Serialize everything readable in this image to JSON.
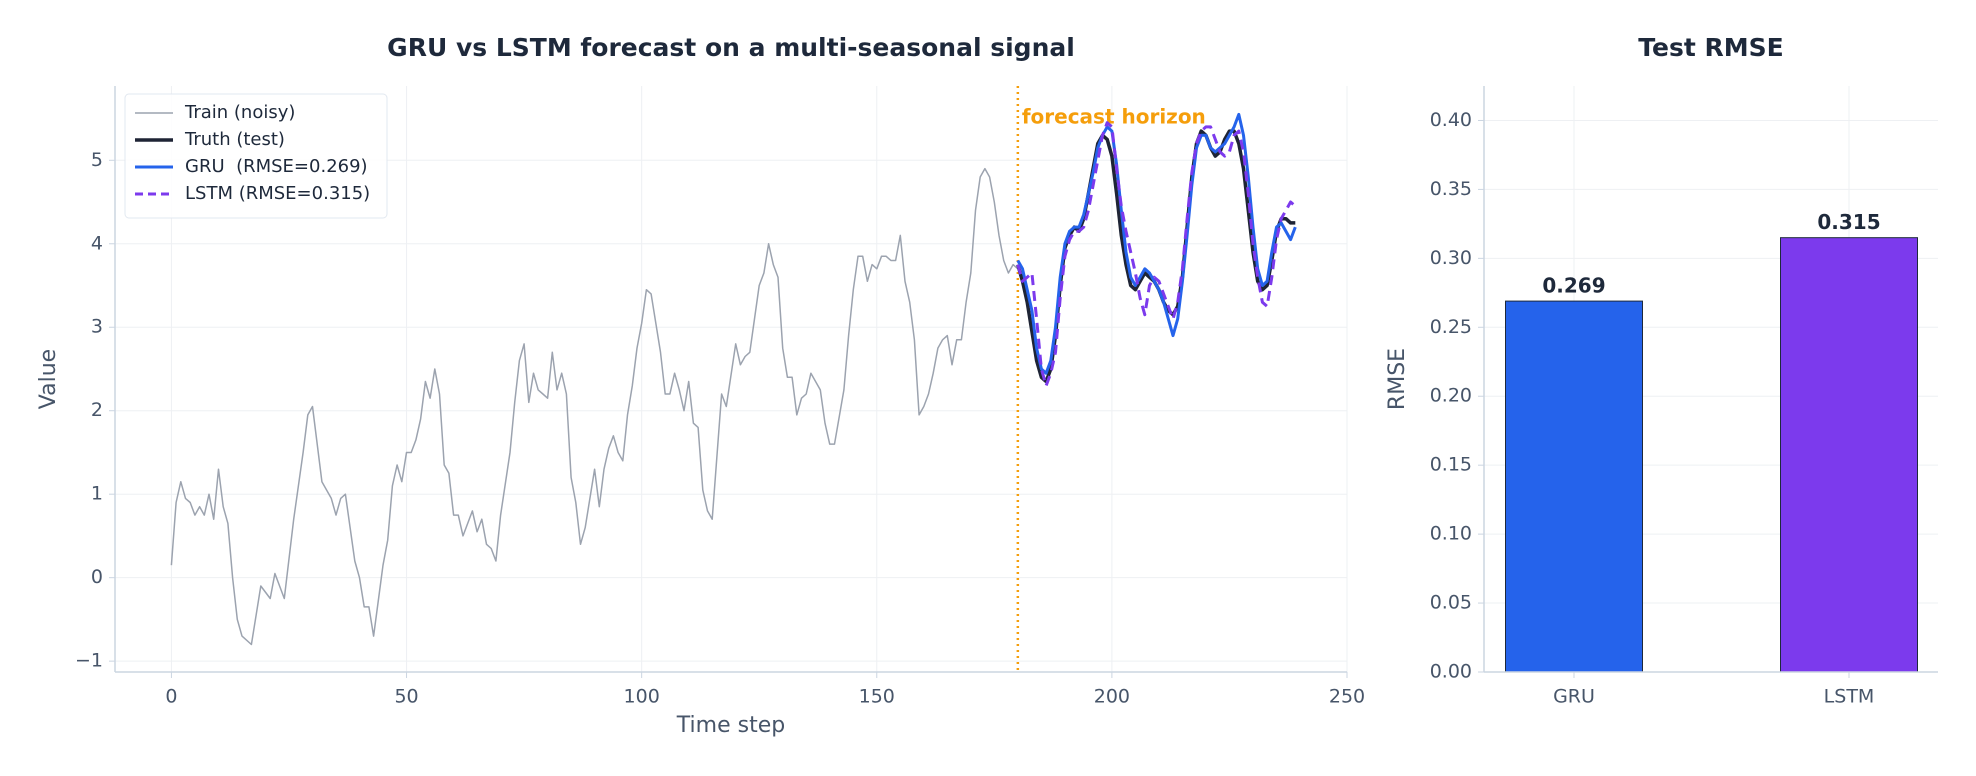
{
  "chart_data": [
    {
      "type": "line",
      "title": "GRU vs LSTM forecast on a multi-seasonal signal",
      "x_label": "Time step",
      "y_label": "Value",
      "xlim": [
        -12,
        250
      ],
      "xticks": [
        0,
        50,
        100,
        150,
        200,
        250
      ],
      "ylim": [
        -1.13,
        5.89
      ],
      "yticks": [
        {
          "value": -1,
          "label": "−1"
        },
        0,
        1,
        2,
        3,
        4,
        5
      ],
      "grid": true,
      "legend": "upper left",
      "annotations": [
        {
          "x": 180,
          "text": "forecast horizon",
          "color": "#f59e0b"
        }
      ],
      "series": [
        {
          "name": "Train (noisy)",
          "color": "#9ca3af",
          "width": 1.5,
          "dash": false,
          "x": [
            0,
            1,
            2,
            3,
            4,
            5,
            6,
            7,
            8,
            9,
            10,
            11,
            12,
            13,
            14,
            15,
            17,
            19,
            21,
            22,
            24,
            26,
            28,
            29,
            30,
            32,
            34,
            35,
            36,
            37,
            39,
            40,
            41,
            42,
            43,
            45,
            46,
            47,
            48,
            49,
            50,
            51,
            52,
            53,
            54,
            55,
            56,
            57,
            58,
            59,
            60,
            61,
            62,
            63,
            64,
            65,
            66,
            67,
            68,
            69,
            70,
            72,
            73,
            74,
            75,
            76,
            77,
            78,
            79,
            80,
            81,
            82,
            83,
            84,
            85,
            86,
            87,
            88,
            90,
            91,
            92,
            93,
            94,
            95,
            96,
            97,
            98,
            99,
            100,
            101,
            102,
            104,
            105,
            106,
            107,
            108,
            109,
            110,
            111,
            112,
            113,
            114,
            115,
            116,
            117,
            118,
            120,
            121,
            122,
            123,
            124,
            125,
            126,
            127,
            128,
            129,
            130,
            131,
            132,
            133,
            134,
            135,
            136,
            138,
            139,
            140,
            141,
            143,
            144,
            145,
            146,
            147,
            148,
            149,
            150,
            151,
            152,
            153,
            154,
            155,
            156,
            157,
            158,
            159,
            160,
            161,
            162,
            163,
            164,
            165,
            166,
            167,
            168,
            169,
            170,
            171,
            172,
            173,
            174,
            175,
            176,
            177,
            178,
            179,
            180
          ],
          "values": [
            0.15,
            0.9,
            1.15,
            0.95,
            0.9,
            0.75,
            0.85,
            0.75,
            1.0,
            0.7,
            1.3,
            0.85,
            0.65,
            0.0,
            -0.5,
            -0.7,
            -0.8,
            -0.1,
            -0.25,
            0.05,
            -0.25,
            0.7,
            1.5,
            1.95,
            2.05,
            1.15,
            0.95,
            0.75,
            0.95,
            1.0,
            0.2,
            0.0,
            -0.35,
            -0.35,
            -0.7,
            0.15,
            0.45,
            1.1,
            1.35,
            1.15,
            1.5,
            1.5,
            1.65,
            1.9,
            2.35,
            2.15,
            2.5,
            2.2,
            1.35,
            1.25,
            0.75,
            0.75,
            0.5,
            0.65,
            0.8,
            0.55,
            0.7,
            0.4,
            0.35,
            0.2,
            0.75,
            1.5,
            2.1,
            2.6,
            2.8,
            2.1,
            2.45,
            2.25,
            2.2,
            2.15,
            2.7,
            2.25,
            2.45,
            2.2,
            1.2,
            0.9,
            0.4,
            0.6,
            1.3,
            0.85,
            1.3,
            1.55,
            1.7,
            1.5,
            1.4,
            1.95,
            2.3,
            2.75,
            3.05,
            3.45,
            3.4,
            2.7,
            2.2,
            2.2,
            2.45,
            2.25,
            2.0,
            2.35,
            1.85,
            1.8,
            1.05,
            0.8,
            0.7,
            1.45,
            2.2,
            2.05,
            2.8,
            2.55,
            2.65,
            2.7,
            3.1,
            3.5,
            3.65,
            4.0,
            3.75,
            3.6,
            2.75,
            2.4,
            2.4,
            1.95,
            2.15,
            2.2,
            2.45,
            2.25,
            1.85,
            1.6,
            1.6,
            2.25,
            2.9,
            3.45,
            3.85,
            3.85,
            3.55,
            3.75,
            3.7,
            3.85,
            3.85,
            3.8,
            3.8,
            4.1,
            3.55,
            3.3,
            2.85,
            1.95,
            2.05,
            2.2,
            2.45,
            2.75,
            2.85,
            2.9,
            2.55,
            2.85,
            2.85,
            3.3,
            3.65,
            4.4,
            4.8,
            4.9,
            4.8,
            4.5,
            4.1,
            3.8,
            3.65,
            3.75,
            3.7
          ]
        },
        {
          "name": "Truth (test)",
          "color": "#1e2435",
          "width": 3.5,
          "dash": false,
          "x": [
            180,
            181,
            182,
            183,
            184,
            185,
            186,
            187,
            188,
            189,
            190,
            191,
            192,
            193,
            194,
            195,
            196,
            197,
            198,
            199,
            200,
            201,
            202,
            203,
            204,
            205,
            206,
            207,
            208,
            209,
            210,
            211,
            212,
            213,
            214,
            215,
            216,
            217,
            218,
            219,
            220,
            221,
            222,
            223,
            224,
            225,
            226,
            227,
            228,
            229,
            230,
            231,
            232,
            233,
            234,
            235,
            236,
            237,
            238,
            239
          ],
          "values": [
            3.75,
            3.55,
            3.3,
            2.95,
            2.6,
            2.4,
            2.35,
            2.5,
            2.9,
            3.5,
            3.95,
            4.1,
            4.2,
            4.15,
            4.3,
            4.6,
            4.9,
            5.2,
            5.3,
            5.25,
            5.05,
            4.6,
            4.1,
            3.75,
            3.5,
            3.45,
            3.55,
            3.65,
            3.6,
            3.55,
            3.45,
            3.3,
            3.2,
            3.15,
            3.25,
            3.6,
            4.2,
            4.8,
            5.2,
            5.35,
            5.3,
            5.15,
            5.05,
            5.1,
            5.25,
            5.35,
            5.35,
            5.2,
            4.9,
            4.4,
            3.9,
            3.55,
            3.45,
            3.5,
            3.8,
            4.15,
            4.3,
            4.3,
            4.25,
            4.25
          ]
        },
        {
          "name": "GRU  (RMSE=0.269)",
          "color": "#2563eb",
          "width": 3,
          "dash": false,
          "x": [
            180,
            181,
            182,
            183,
            184,
            185,
            186,
            187,
            188,
            189,
            190,
            191,
            192,
            193,
            194,
            195,
            196,
            197,
            198,
            199,
            200,
            201,
            202,
            203,
            204,
            205,
            206,
            207,
            208,
            209,
            210,
            211,
            212,
            213,
            214,
            215,
            216,
            217,
            218,
            219,
            220,
            221,
            222,
            223,
            224,
            225,
            226,
            227,
            228,
            229,
            230,
            231,
            232,
            233,
            234,
            235,
            236,
            237,
            238,
            239
          ],
          "values": [
            3.8,
            3.7,
            3.45,
            3.2,
            2.75,
            2.5,
            2.45,
            2.6,
            3.0,
            3.6,
            4.0,
            4.15,
            4.2,
            4.2,
            4.35,
            4.6,
            4.85,
            5.15,
            5.3,
            5.4,
            5.35,
            4.95,
            4.4,
            3.9,
            3.6,
            3.5,
            3.6,
            3.7,
            3.65,
            3.55,
            3.45,
            3.3,
            3.1,
            2.9,
            3.1,
            3.55,
            4.1,
            4.7,
            5.15,
            5.3,
            5.3,
            5.15,
            5.1,
            5.15,
            5.2,
            5.3,
            5.4,
            5.55,
            5.3,
            4.8,
            4.2,
            3.7,
            3.5,
            3.55,
            3.9,
            4.2,
            4.25,
            4.15,
            4.05,
            4.2
          ]
        },
        {
          "name": "LSTM (RMSE=0.315)",
          "color": "#7c3aed",
          "width": 3,
          "dash": true,
          "x": [
            180,
            181,
            182,
            183,
            184,
            185,
            186,
            187,
            188,
            189,
            190,
            191,
            192,
            193,
            194,
            195,
            196,
            197,
            198,
            199,
            200,
            201,
            202,
            203,
            204,
            205,
            206,
            207,
            208,
            209,
            210,
            211,
            212,
            213,
            214,
            215,
            216,
            217,
            218,
            219,
            220,
            221,
            222,
            223,
            224,
            225,
            226,
            227,
            228,
            229,
            230,
            231,
            232,
            233,
            234,
            235,
            236,
            237,
            238,
            239
          ],
          "values": [
            3.75,
            3.55,
            3.6,
            3.65,
            3.1,
            2.5,
            2.3,
            2.45,
            2.7,
            3.35,
            3.85,
            4.05,
            4.15,
            4.15,
            4.2,
            4.4,
            4.7,
            5.0,
            5.3,
            5.45,
            5.4,
            4.9,
            4.45,
            4.15,
            3.9,
            3.65,
            3.35,
            3.15,
            3.5,
            3.6,
            3.55,
            3.4,
            3.25,
            3.1,
            3.3,
            3.7,
            4.3,
            4.85,
            5.2,
            5.35,
            5.4,
            5.4,
            5.25,
            5.1,
            5.05,
            5.1,
            5.3,
            5.35,
            5.1,
            4.6,
            4.0,
            3.6,
            3.3,
            3.25,
            3.6,
            4.05,
            4.3,
            4.4,
            4.5,
            4.45
          ]
        }
      ]
    },
    {
      "type": "bar",
      "title": "Test RMSE",
      "y_label": "RMSE",
      "categories": [
        "GRU",
        "LSTM"
      ],
      "values": [
        0.269,
        0.315
      ],
      "colors": [
        "#2563eb",
        "#7c3aed"
      ],
      "ylim": [
        0,
        0.425
      ],
      "yticks": [
        {
          "value": 0,
          "label": "0.00"
        },
        {
          "value": 0.05,
          "label": "0.05"
        },
        {
          "value": 0.1,
          "label": "0.10"
        },
        {
          "value": 0.15,
          "label": "0.15"
        },
        {
          "value": 0.2,
          "label": "0.20"
        },
        {
          "value": 0.25,
          "label": "0.25"
        },
        {
          "value": 0.3,
          "label": "0.30"
        },
        {
          "value": 0.35,
          "label": "0.35"
        },
        {
          "value": 0.4,
          "label": "0.40"
        }
      ],
      "grid": true
    }
  ]
}
